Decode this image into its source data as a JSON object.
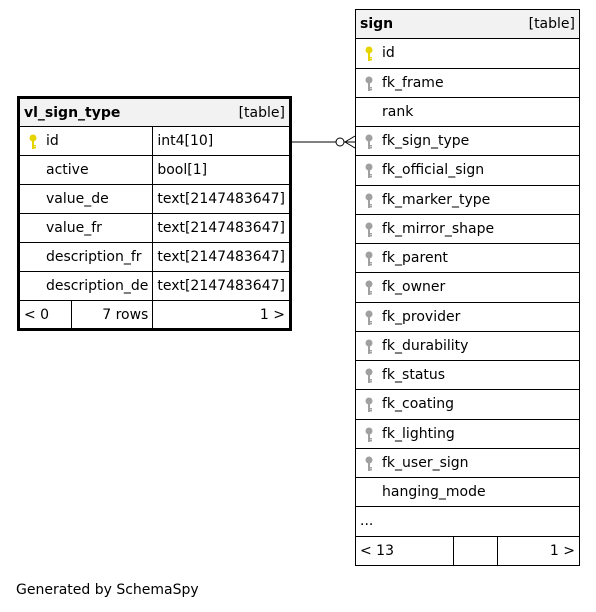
{
  "vl_sign_type": {
    "name": "vl_sign_type",
    "kind": "[table]",
    "columns": [
      {
        "name": "id",
        "type": "int4[10]",
        "icon": "primary-key-icon"
      },
      {
        "name": "active",
        "type": "bool[1]"
      },
      {
        "name": "value_de",
        "type": "text[2147483647]"
      },
      {
        "name": "value_fr",
        "type": "text[2147483647]"
      },
      {
        "name": "description_fr",
        "type": "text[2147483647]"
      },
      {
        "name": "description_de",
        "type": "text[2147483647]"
      }
    ],
    "footer": {
      "parents": "< 0",
      "rows": "7 rows",
      "children": "1 >"
    }
  },
  "sign": {
    "name": "sign",
    "kind": "[table]",
    "columns": [
      {
        "name": "id",
        "icon": "primary-key-icon"
      },
      {
        "name": "fk_frame",
        "icon": "foreign-key-icon"
      },
      {
        "name": "rank"
      },
      {
        "name": "fk_sign_type",
        "icon": "foreign-key-icon"
      },
      {
        "name": "fk_official_sign",
        "icon": "foreign-key-icon"
      },
      {
        "name": "fk_marker_type",
        "icon": "foreign-key-icon"
      },
      {
        "name": "fk_mirror_shape",
        "icon": "foreign-key-icon"
      },
      {
        "name": "fk_parent",
        "icon": "foreign-key-icon"
      },
      {
        "name": "fk_owner",
        "icon": "foreign-key-icon"
      },
      {
        "name": "fk_provider",
        "icon": "foreign-key-icon"
      },
      {
        "name": "fk_durability",
        "icon": "foreign-key-icon"
      },
      {
        "name": "fk_status",
        "icon": "foreign-key-icon"
      },
      {
        "name": "fk_coating",
        "icon": "foreign-key-icon"
      },
      {
        "name": "fk_lighting",
        "icon": "foreign-key-icon"
      },
      {
        "name": "fk_user_sign",
        "icon": "foreign-key-icon"
      },
      {
        "name": "hanging_mode"
      }
    ],
    "more": "...",
    "footer": {
      "parents": "< 13",
      "rows": "",
      "children": "1 >"
    }
  },
  "relationship": {
    "from": "vl_sign_type.id",
    "to": "sign.fk_sign_type",
    "style": "zero-or-many"
  },
  "colors": {
    "primary_key": "#e6d400",
    "foreign_key": "#a0a0a0",
    "header_bg": "#f2f2f2"
  },
  "generated_by": "Generated by SchemaSpy"
}
